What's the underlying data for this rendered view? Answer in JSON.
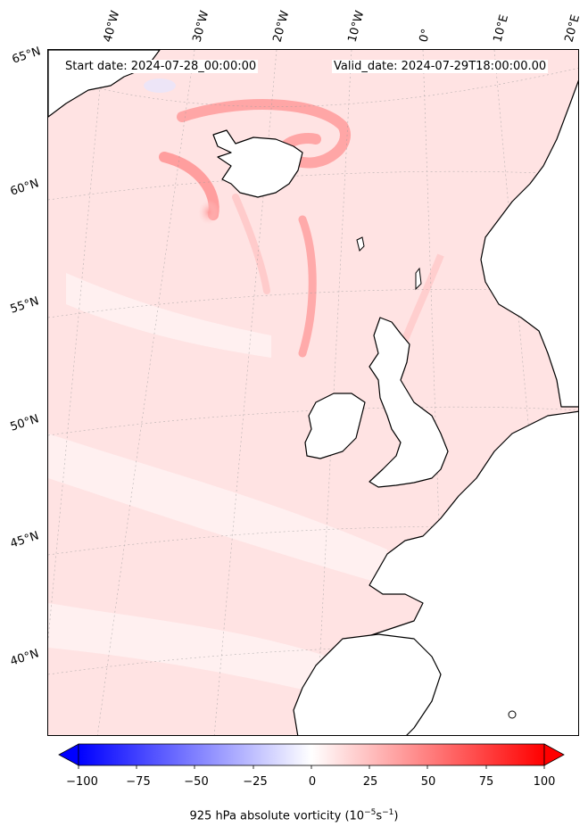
{
  "header": {
    "start_date": "Start date: 2024-07-28_00:00:00",
    "valid_date": "Valid_date: 2024-07-29T18:00:00.00"
  },
  "longitude_labels": [
    "40°W",
    "30°W",
    "20°W",
    "10°W",
    "0°",
    "10°E",
    "20°E"
  ],
  "latitude_labels": [
    "65°N",
    "60°N",
    "55°N",
    "50°N",
    "45°N",
    "40°N"
  ],
  "colorbar": {
    "ticks": [
      "−100",
      "−75",
      "−50",
      "−25",
      "0",
      "25",
      "50",
      "75",
      "100"
    ],
    "label": "925 hPa absolute vorticity (10",
    "label_exp1": "−5",
    "label_mid": "s",
    "label_exp2": "−1",
    "label_end": ")",
    "min": -100,
    "max": 100,
    "colors": {
      "negative": "#0000ff",
      "zero": "#ffffff",
      "positive": "#ff0000"
    }
  },
  "colors": {
    "field": "#ffe3e3",
    "land": "#ffffff",
    "coast": "#000000"
  }
}
